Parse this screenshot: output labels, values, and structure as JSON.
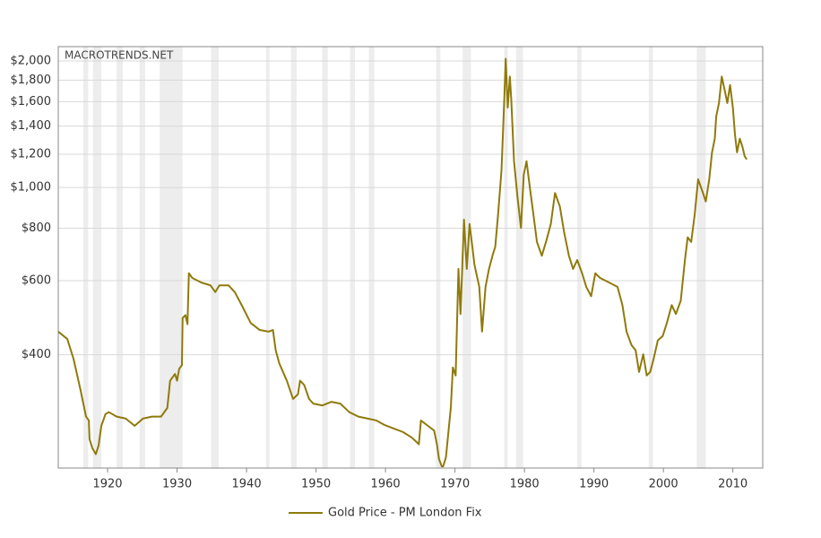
{
  "chart_data": {
    "type": "line",
    "watermark": "MACROTRENDS.NET",
    "log_scale": true,
    "grid": true,
    "legend": "bottom",
    "xlim": [
      1912.9,
      2014.3
    ],
    "xticks": [
      1920,
      1930,
      1940,
      1950,
      1960,
      1970,
      1980,
      1990,
      2000,
      2010
    ],
    "ylim": [
      215,
      2163
    ],
    "yticks": [
      {
        "value": 400,
        "label": "$400"
      },
      {
        "value": 600,
        "label": "$600"
      },
      {
        "value": 800,
        "label": "$800"
      },
      {
        "value": 1000,
        "label": "$1,000"
      },
      {
        "value": 1200,
        "label": "$1,200"
      },
      {
        "value": 1400,
        "label": "$1,400"
      },
      {
        "value": 1600,
        "label": "$1,600"
      },
      {
        "value": 1800,
        "label": "$1,800"
      },
      {
        "value": 2000,
        "label": "$2,000"
      }
    ],
    "recession_color": "#ededed",
    "recessions": [
      [
        1916.5,
        1917.2
      ],
      [
        1917.9,
        1919.1
      ],
      [
        1921.3,
        1922.2
      ],
      [
        1924.6,
        1925.4
      ],
      [
        1927.5,
        1930.8
      ],
      [
        1934.9,
        1936.0
      ],
      [
        1942.8,
        1943.3
      ],
      [
        1946.4,
        1947.2
      ],
      [
        1950.9,
        1951.7
      ],
      [
        1954.9,
        1955.6
      ],
      [
        1957.6,
        1958.4
      ],
      [
        1967.3,
        1967.9
      ],
      [
        1971.1,
        1972.3
      ],
      [
        1977.1,
        1977.6
      ],
      [
        1978.8,
        1979.8
      ],
      [
        1987.6,
        1988.2
      ],
      [
        1997.9,
        1998.5
      ],
      [
        2004.8,
        2006.1
      ]
    ],
    "x": [
      1912.9,
      1914.2,
      1915.1,
      1916.1,
      1916.9,
      1917.3,
      1917.4,
      1917.8,
      1918.3,
      1918.7,
      1919.1,
      1919.7,
      1920.2,
      1921.3,
      1922.6,
      1923.9,
      1925.1,
      1926.4,
      1927.7,
      1928.6,
      1929.0,
      1929.7,
      1930.0,
      1930.3,
      1930.7,
      1930.8,
      1931.2,
      1931.5,
      1931.7,
      1932.2,
      1933.5,
      1934.8,
      1935.5,
      1936.1,
      1937.4,
      1938.3,
      1939.3,
      1940.6,
      1941.9,
      1943.2,
      1943.8,
      1944.2,
      1944.7,
      1945.8,
      1946.7,
      1947.4,
      1947.7,
      1948.3,
      1949.0,
      1949.6,
      1950.9,
      1952.2,
      1953.5,
      1954.8,
      1956.1,
      1957.4,
      1958.7,
      1959.9,
      1961.2,
      1962.5,
      1963.8,
      1964.8,
      1965.1,
      1966.1,
      1967.0,
      1967.4,
      1967.7,
      1968.1,
      1968.3,
      1968.7,
      1969.4,
      1969.7,
      1970.1,
      1970.5,
      1970.8,
      1971.3,
      1971.7,
      1972.1,
      1972.5,
      1972.8,
      1973.5,
      1973.9,
      1974.4,
      1974.9,
      1975.4,
      1975.8,
      1976.2,
      1976.7,
      1977.1,
      1977.3,
      1977.6,
      1977.9,
      1978.1,
      1978.5,
      1979.0,
      1979.5,
      1979.9,
      1980.3,
      1980.8,
      1981.3,
      1981.8,
      1982.5,
      1983.1,
      1983.8,
      1984.4,
      1985.1,
      1985.7,
      1986.4,
      1987.0,
      1987.6,
      1988.3,
      1988.9,
      1989.6,
      1990.2,
      1990.9,
      1992.2,
      1993.4,
      1994.1,
      1994.7,
      1995.4,
      1996.0,
      1996.5,
      1997.1,
      1997.6,
      1998.1,
      1998.6,
      1999.2,
      1999.9,
      2000.5,
      2001.2,
      2001.8,
      2002.5,
      2003.1,
      2003.5,
      2004.0,
      2004.5,
      2005.0,
      2005.7,
      2006.1,
      2006.6,
      2007.0,
      2007.4,
      2007.6,
      2008.0,
      2008.4,
      2008.8,
      2009.2,
      2009.6,
      2010.0,
      2010.3,
      2010.6,
      2011.0,
      2011.4,
      2011.7,
      2012.0
    ],
    "series": [
      {
        "name": "Gold Price - PM London Fix",
        "color": "#8f7a0c",
        "values": [
          454,
          436,
          391,
          330,
          285,
          279,
          252,
          240,
          232,
          243,
          271,
          289,
          292,
          285,
          282,
          271,
          282,
          285,
          285,
          299,
          347,
          360,
          347,
          370,
          378,
          489,
          497,
          473,
          625,
          609,
          594,
          585,
          564,
          585,
          585,
          564,
          525,
          476,
          458,
          454,
          458,
          410,
          382,
          347,
          314,
          322,
          347,
          339,
          314,
          306,
          303,
          309,
          306,
          292,
          285,
          282,
          279,
          272,
          267,
          262,
          254,
          245,
          279,
          271,
          264,
          245,
          226,
          217,
          217,
          228,
          299,
          373,
          357,
          640,
          500,
          838,
          640,
          819,
          723,
          656,
          580,
          454,
          580,
          640,
          688,
          723,
          860,
          1100,
          1623,
          2024,
          1549,
          1836,
          1623,
          1155,
          949,
          801,
          1072,
          1155,
          994,
          860,
          742,
          688,
          742,
          819,
          970,
          901,
          784,
          688,
          640,
          672,
          625,
          580,
          551,
          625,
          609,
          594,
          580,
          525,
          454,
          422,
          410,
          364,
          401,
          357,
          364,
          391,
          433,
          443,
          476,
          525,
          500,
          538,
          672,
          761,
          742,
          860,
          1046,
          970,
          926,
          1046,
          1212,
          1306,
          1475,
          1588,
          1836,
          1710,
          1588,
          1752,
          1549,
          1337,
          1212,
          1306,
          1246,
          1186,
          1166
        ]
      }
    ]
  }
}
